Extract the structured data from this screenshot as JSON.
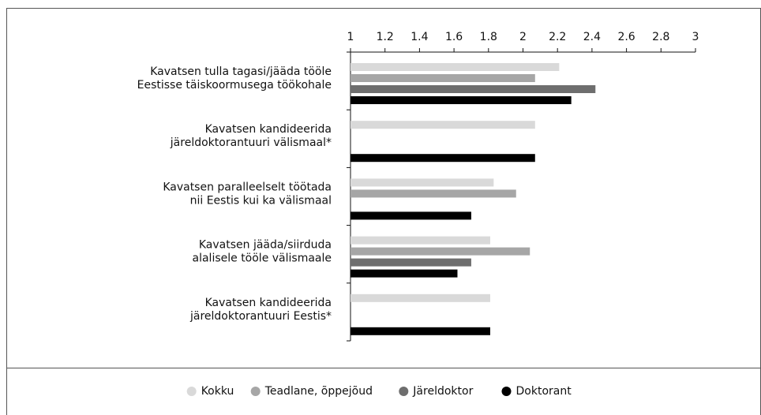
{
  "chart_data": {
    "type": "hbar",
    "categories": [
      [
        "Kavatsen tulla tagasi/jääda tööle",
        "Eestisse täiskoormusega töökohale"
      ],
      [
        "Kavatsen kandideerida",
        "järeldoktorantuuri välismaal*"
      ],
      [
        "Kavatsen paralleelselt töötada",
        "nii Eestis kui ka välismaal"
      ],
      [
        "Kavatsen jääda/siirduda",
        "alalisele tööle välismaale"
      ],
      [
        "Kavatsen kandideerida",
        "järeldoktorantuuri Eestis*"
      ]
    ],
    "series": [
      {
        "name": "Kokku",
        "color": "#d9d9d9",
        "values": [
          2.21,
          2.07,
          1.83,
          1.81,
          1.81
        ]
      },
      {
        "name": "Teadlane, õppejõud",
        "color": "#a6a6a6",
        "values": [
          2.07,
          null,
          1.96,
          2.04,
          null
        ]
      },
      {
        "name": "Järeldoktor",
        "color": "#6e6e6e",
        "values": [
          2.42,
          null,
          null,
          1.7,
          null
        ]
      },
      {
        "name": "Doktorant",
        "color": "#000000",
        "values": [
          2.28,
          2.07,
          1.7,
          1.62,
          1.81
        ]
      }
    ],
    "xlim": [
      1,
      3
    ],
    "xticks": [
      1,
      1.2,
      1.4,
      1.6,
      1.8,
      2,
      2.2,
      2.4,
      2.6,
      2.8,
      3
    ],
    "legend": "bottom"
  }
}
